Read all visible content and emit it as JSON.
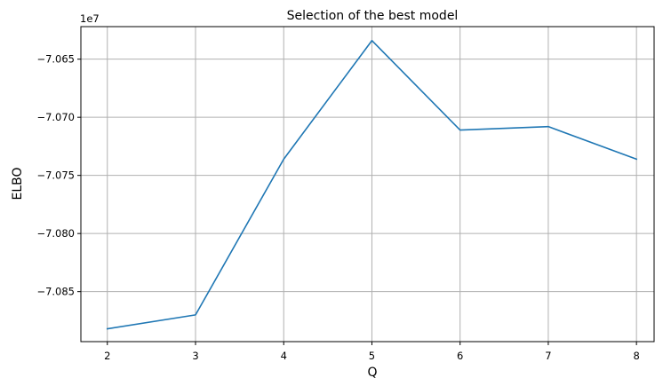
{
  "chart_data": {
    "type": "line",
    "title": "Selection of the best model",
    "xlabel": "Q",
    "ylabel": "ELBO",
    "y_offset_label": "1e7",
    "x": [
      2,
      3,
      4,
      5,
      6,
      7,
      8
    ],
    "series": [
      {
        "values": [
          -7.0882,
          -7.087,
          -7.0736,
          -7.0634,
          -7.0711,
          -7.0708,
          -7.0736
        ],
        "color": "#1f77b4"
      }
    ],
    "xlim": [
      1.7,
      8.2
    ],
    "ylim": [
      -7.0893,
      -7.0622
    ],
    "xticks": [
      2,
      3,
      4,
      5,
      6,
      7,
      8
    ],
    "xtick_labels": [
      "2",
      "3",
      "4",
      "5",
      "6",
      "7",
      "8"
    ],
    "yticks": [
      -7.085,
      -7.08,
      -7.075,
      -7.07,
      -7.065
    ],
    "ytick_labels": [
      "−7.085",
      "−7.080",
      "−7.075",
      "−7.070",
      "−7.065"
    ],
    "grid": true,
    "legend": "none"
  }
}
